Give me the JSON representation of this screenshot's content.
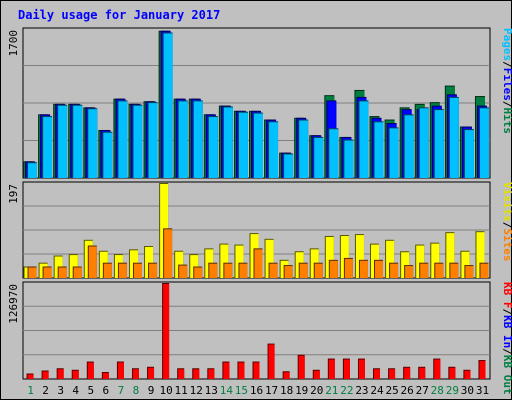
{
  "chart_data": {
    "type": "bar",
    "title": "Daily usage for January 2017",
    "categories": [
      "1",
      "2",
      "3",
      "4",
      "5",
      "6",
      "7",
      "8",
      "9",
      "10",
      "11",
      "12",
      "13",
      "14",
      "15",
      "16",
      "17",
      "18",
      "19",
      "20",
      "21",
      "22",
      "23",
      "24",
      "25",
      "26",
      "27",
      "28",
      "29",
      "30",
      "31"
    ],
    "weekend_categories": [
      "1",
      "7",
      "8",
      "14",
      "15",
      "21",
      "22",
      "28",
      "29"
    ],
    "panels": [
      {
        "name": "hits-files-pages",
        "ymax_label": "1700",
        "ylim": [
          0,
          1700
        ],
        "legend": [
          {
            "text": "Pages",
            "color": "#00c0ff"
          },
          {
            "text": "/",
            "color": "#000000"
          },
          {
            "text": "Files",
            "color": "#0000ff"
          },
          {
            "text": "/",
            "color": "#000000"
          },
          {
            "text": "Hits",
            "color": "#008040"
          }
        ],
        "series": [
          {
            "name": "Hits",
            "color": "#008040",
            "values": [
              180,
              720,
              840,
              840,
              800,
              540,
              900,
              840,
              870,
              1680,
              900,
              900,
              720,
              820,
              760,
              760,
              660,
              280,
              680,
              480,
              940,
              460,
              1000,
              700,
              660,
              800,
              840,
              860,
              1050,
              580,
              930
            ]
          },
          {
            "name": "Files",
            "color": "#0000ff",
            "values": [
              180,
              720,
              840,
              840,
              800,
              540,
              900,
              840,
              870,
              1680,
              900,
              900,
              720,
              820,
              760,
              760,
              660,
              280,
              680,
              480,
              880,
              460,
              920,
              680,
              620,
              780,
              780,
              820,
              950,
              580,
              820
            ]
          },
          {
            "name": "Pages",
            "color": "#00c0ff",
            "values": [
              170,
              700,
              830,
              830,
              790,
              520,
              880,
              830,
              860,
              1660,
              880,
              880,
              700,
              810,
              750,
              740,
              640,
              270,
              660,
              460,
              560,
              430,
              880,
              640,
              570,
              720,
              800,
              780,
              920,
              550,
              800
            ]
          }
        ]
      },
      {
        "name": "visits-sites",
        "ymax_label": "197",
        "ylim": [
          0,
          197
        ],
        "legend": [
          {
            "text": "Visits",
            "color": "#e0e000"
          },
          {
            "text": "/",
            "color": "#000000"
          },
          {
            "text": "Sites",
            "color": "#ff8000"
          }
        ],
        "series": [
          {
            "name": "Visits",
            "color": "#ffff00",
            "values": [
              22,
              30,
              45,
              48,
              78,
              55,
              48,
              58,
              65,
              197,
              55,
              48,
              60,
              70,
              68,
              92,
              80,
              36,
              54,
              60,
              86,
              88,
              90,
              70,
              78,
              54,
              68,
              72,
              94,
              55,
              96
            ]
          },
          {
            "name": "Sites",
            "color": "#ff8000",
            "values": [
              22,
              22,
              22,
              22,
              66,
              30,
              30,
              30,
              30,
              102,
              26,
              22,
              30,
              30,
              30,
              60,
              30,
              25,
              30,
              30,
              36,
              40,
              36,
              36,
              30,
              25,
              30,
              30,
              30,
              25,
              30
            ]
          }
        ]
      },
      {
        "name": "kbytes",
        "ymax_label": "126970",
        "ylim": [
          0,
          126970
        ],
        "legend": [
          {
            "text": "KB F",
            "color": "#ff0000"
          },
          {
            "text": "/",
            "color": "#000000"
          },
          {
            "text": "KB In",
            "color": "#0000ff"
          },
          {
            "text": "/",
            "color": "#000000"
          },
          {
            "text": "KB Out",
            "color": "#008040"
          }
        ],
        "series": [
          {
            "name": "KB F",
            "color": "#ff0000",
            "values": [
              6000,
              10000,
              13000,
              11000,
              22000,
              8000,
              22000,
              13000,
              15000,
              126970,
              13000,
              13000,
              13000,
              22000,
              22000,
              22000,
              46000,
              9000,
              31000,
              11000,
              26000,
              26000,
              26000,
              13000,
              13000,
              15000,
              15000,
              26000,
              15000,
              11000,
              24000
            ]
          }
        ]
      }
    ]
  }
}
